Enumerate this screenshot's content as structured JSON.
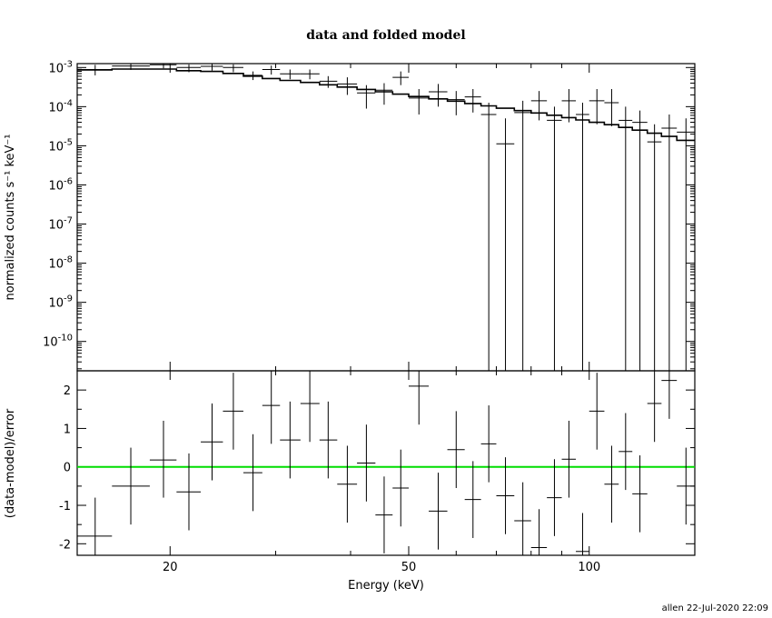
{
  "chart_data": {
    "type": "scatter",
    "title": "data and folded model",
    "footer": "allen 22-Jul-2020 22:09",
    "xlabel": "Energy (keV)",
    "xscale": "log",
    "xlim": [
      14,
      150
    ],
    "xticks": [
      {
        "value": 20,
        "label": "20"
      },
      {
        "value": 50,
        "label": "50"
      },
      {
        "value": 100,
        "label": "100"
      }
    ],
    "top_panel": {
      "ylabel": "normalized counts s⁻¹ keV⁻¹",
      "yscale": "log",
      "ylim_exp": [
        -10.75,
        -2.9
      ],
      "yticks": [
        {
          "value": -3,
          "base": "10",
          "exp": "-3"
        },
        {
          "value": -4,
          "base": "10",
          "exp": "-4"
        },
        {
          "value": -5,
          "base": "10",
          "exp": "-5"
        },
        {
          "value": -6,
          "base": "10",
          "exp": "-6"
        },
        {
          "value": -7,
          "base": "10",
          "exp": "-7"
        },
        {
          "value": -8,
          "base": "10",
          "exp": "-8"
        },
        {
          "value": -9,
          "base": "10",
          "exp": "-9"
        },
        {
          "value": -10,
          "base": "10",
          "exp": "-10"
        }
      ],
      "model_steps": [
        [
          14,
          16,
          -3.06
        ],
        [
          16,
          18.5,
          -3.04
        ],
        [
          18.5,
          20.5,
          -3.04
        ],
        [
          20.5,
          22.5,
          -3.08
        ],
        [
          22.5,
          24.5,
          -3.1
        ],
        [
          24.5,
          26.5,
          -3.15
        ],
        [
          26.5,
          28.5,
          -3.22
        ],
        [
          28.5,
          30.5,
          -3.28
        ],
        [
          30.5,
          33,
          -3.33
        ],
        [
          33,
          35.5,
          -3.38
        ],
        [
          35.5,
          38,
          -3.44
        ],
        [
          38,
          41,
          -3.5
        ],
        [
          41,
          44,
          -3.56
        ],
        [
          44,
          47,
          -3.62
        ],
        [
          47,
          50,
          -3.68
        ],
        [
          50,
          54,
          -3.74
        ],
        [
          54,
          58,
          -3.8
        ],
        [
          58,
          62,
          -3.86
        ],
        [
          62,
          66,
          -3.92
        ],
        [
          66,
          70,
          -3.98
        ],
        [
          70,
          75,
          -4.04
        ],
        [
          75,
          80,
          -4.1
        ],
        [
          80,
          85,
          -4.16
        ],
        [
          85,
          90,
          -4.22
        ],
        [
          90,
          95,
          -4.28
        ],
        [
          95,
          100,
          -4.34
        ],
        [
          100,
          106,
          -4.4
        ],
        [
          106,
          112,
          -4.46
        ],
        [
          112,
          118,
          -4.53
        ],
        [
          118,
          125,
          -4.6
        ],
        [
          125,
          132,
          -4.68
        ],
        [
          132,
          140,
          -4.76
        ],
        [
          140,
          150,
          -4.86
        ]
      ],
      "points": [
        {
          "x": 15,
          "xlo": 14,
          "xhi": 16,
          "y": -3.05,
          "ylo": -3.2,
          "yhi": -2.93
        },
        {
          "x": 17.2,
          "xlo": 16,
          "xhi": 18.5,
          "y": -2.96,
          "ylo": -3.06,
          "yhi": -2.9
        },
        {
          "x": 19.5,
          "xlo": 18.5,
          "xhi": 20.5,
          "y": -2.93,
          "ylo": -3.02,
          "yhi": -2.9
        },
        {
          "x": 21.5,
          "xlo": 20.5,
          "xhi": 22.5,
          "y": -3.0,
          "ylo": -3.12,
          "yhi": -2.92
        },
        {
          "x": 23.5,
          "xlo": 22.5,
          "xhi": 24.5,
          "y": -2.97,
          "ylo": -3.08,
          "yhi": -2.9
        },
        {
          "x": 25.5,
          "xlo": 24.5,
          "xhi": 26.5,
          "y": -3.0,
          "ylo": -3.12,
          "yhi": -2.92
        },
        {
          "x": 27.5,
          "xlo": 26.5,
          "xhi": 28.5,
          "y": -3.2,
          "ylo": -3.32,
          "yhi": -3.1
        },
        {
          "x": 29.5,
          "xlo": 28.5,
          "xhi": 30.5,
          "y": -3.05,
          "ylo": -3.18,
          "yhi": -2.95
        },
        {
          "x": 31.7,
          "xlo": 30.5,
          "xhi": 33,
          "y": -3.16,
          "ylo": -3.3,
          "yhi": -3.05
        },
        {
          "x": 34.2,
          "xlo": 33,
          "xhi": 35.5,
          "y": -3.16,
          "ylo": -3.3,
          "yhi": -3.05
        },
        {
          "x": 36.7,
          "xlo": 35.5,
          "xhi": 38,
          "y": -3.35,
          "ylo": -3.52,
          "yhi": -3.22
        },
        {
          "x": 39.5,
          "xlo": 38,
          "xhi": 41,
          "y": -3.42,
          "ylo": -3.7,
          "yhi": -3.25
        },
        {
          "x": 42.5,
          "xlo": 41,
          "xhi": 44,
          "y": -3.65,
          "ylo": -4.05,
          "yhi": -3.45
        },
        {
          "x": 45.5,
          "xlo": 44,
          "xhi": 47,
          "y": -3.58,
          "ylo": -3.95,
          "yhi": -3.4
        },
        {
          "x": 48.5,
          "xlo": 47,
          "xhi": 50,
          "y": -3.25,
          "ylo": -3.45,
          "yhi": -3.1
        },
        {
          "x": 52,
          "xlo": 50,
          "xhi": 54,
          "y": -3.78,
          "ylo": -4.2,
          "yhi": -3.55
        },
        {
          "x": 56,
          "xlo": 54,
          "xhi": 58,
          "y": -3.62,
          "ylo": -4.0,
          "yhi": -3.42
        },
        {
          "x": 60,
          "xlo": 58,
          "xhi": 62,
          "y": -3.82,
          "ylo": -4.22,
          "yhi": -3.6
        },
        {
          "x": 64,
          "xlo": 62,
          "xhi": 66,
          "y": -3.75,
          "ylo": -4.15,
          "yhi": -3.55
        },
        {
          "x": 68,
          "xlo": 66,
          "xhi": 70,
          "y": -4.2,
          "ylo": -10.75,
          "yhi": -3.9
        },
        {
          "x": 72.5,
          "xlo": 70,
          "xhi": 75,
          "y": -4.95,
          "ylo": -10.75,
          "yhi": -4.3
        },
        {
          "x": 77.5,
          "xlo": 75,
          "xhi": 80,
          "y": -4.15,
          "ylo": -10.75,
          "yhi": -3.85
        },
        {
          "x": 82.5,
          "xlo": 80,
          "xhi": 85,
          "y": -3.85,
          "ylo": -4.35,
          "yhi": -3.6
        },
        {
          "x": 87.5,
          "xlo": 85,
          "xhi": 90,
          "y": -4.35,
          "ylo": -10.75,
          "yhi": -4.0
        },
        {
          "x": 92.5,
          "xlo": 90,
          "xhi": 95,
          "y": -3.85,
          "ylo": -4.4,
          "yhi": -3.55
        },
        {
          "x": 97.5,
          "xlo": 95,
          "xhi": 100,
          "y": -4.2,
          "ylo": -10.75,
          "yhi": -3.9
        },
        {
          "x": 103,
          "xlo": 100,
          "xhi": 106,
          "y": -3.85,
          "ylo": -4.45,
          "yhi": -3.55
        },
        {
          "x": 109,
          "xlo": 106,
          "xhi": 112,
          "y": -3.9,
          "ylo": -4.5,
          "yhi": -3.55
        },
        {
          "x": 115,
          "xlo": 112,
          "xhi": 118,
          "y": -4.35,
          "ylo": -10.75,
          "yhi": -4.0
        },
        {
          "x": 121.5,
          "xlo": 118,
          "xhi": 125,
          "y": -4.4,
          "ylo": -10.75,
          "yhi": -4.1
        },
        {
          "x": 128.5,
          "xlo": 125,
          "xhi": 132,
          "y": -4.9,
          "ylo": -10.75,
          "yhi": -4.45
        },
        {
          "x": 136,
          "xlo": 132,
          "xhi": 140,
          "y": -4.55,
          "ylo": -10.75,
          "yhi": -4.2
        },
        {
          "x": 145,
          "xlo": 140,
          "xhi": 150,
          "y": -4.65,
          "ylo": -10.75,
          "yhi": -4.3
        }
      ]
    },
    "bottom_panel": {
      "ylabel": "(data-model)/error",
      "ylim": [
        -2.3,
        2.5
      ],
      "yticks": [
        {
          "value": 2,
          "label": "2"
        },
        {
          "value": 1,
          "label": "1"
        },
        {
          "value": 0,
          "label": "0"
        },
        {
          "value": -1,
          "label": "-1"
        },
        {
          "value": -2,
          "label": "-2"
        }
      ],
      "zero_line_color": "#00dd00",
      "points": [
        {
          "x": 15,
          "xlo": 14,
          "xhi": 16,
          "y": -1.8,
          "ylo": -2.3,
          "yhi": -0.8
        },
        {
          "x": 17.2,
          "xlo": 16,
          "xhi": 18.5,
          "y": -0.5,
          "ylo": -1.5,
          "yhi": 0.5
        },
        {
          "x": 19.5,
          "xlo": 18.5,
          "xhi": 20.5,
          "y": 0.18,
          "ylo": -0.8,
          "yhi": 1.2
        },
        {
          "x": 21.5,
          "xlo": 20.5,
          "xhi": 22.5,
          "y": -0.65,
          "ylo": -1.65,
          "yhi": 0.35
        },
        {
          "x": 23.5,
          "xlo": 22.5,
          "xhi": 24.5,
          "y": 0.65,
          "ylo": -0.35,
          "yhi": 1.65
        },
        {
          "x": 25.5,
          "xlo": 24.5,
          "xhi": 26.5,
          "y": 1.45,
          "ylo": 0.45,
          "yhi": 2.45
        },
        {
          "x": 27.5,
          "xlo": 26.5,
          "xhi": 28.5,
          "y": -0.15,
          "ylo": -1.15,
          "yhi": 0.85
        },
        {
          "x": 29.5,
          "xlo": 28.5,
          "xhi": 30.5,
          "y": 1.6,
          "ylo": 0.6,
          "yhi": 2.5
        },
        {
          "x": 31.7,
          "xlo": 30.5,
          "xhi": 33,
          "y": 0.7,
          "ylo": -0.3,
          "yhi": 1.7
        },
        {
          "x": 34.2,
          "xlo": 33,
          "xhi": 35.5,
          "y": 1.65,
          "ylo": 0.65,
          "yhi": 2.5
        },
        {
          "x": 36.7,
          "xlo": 35.5,
          "xhi": 38,
          "y": 0.7,
          "ylo": -0.3,
          "yhi": 1.7
        },
        {
          "x": 39.5,
          "xlo": 38,
          "xhi": 41,
          "y": -0.45,
          "ylo": -1.45,
          "yhi": 0.55
        },
        {
          "x": 42.5,
          "xlo": 41,
          "xhi": 44,
          "y": 0.1,
          "ylo": -0.9,
          "yhi": 1.1
        },
        {
          "x": 45.5,
          "xlo": 44,
          "xhi": 47,
          "y": -1.25,
          "ylo": -2.25,
          "yhi": -0.25
        },
        {
          "x": 48.5,
          "xlo": 47,
          "xhi": 50,
          "y": -0.55,
          "ylo": -1.55,
          "yhi": 0.45
        },
        {
          "x": 52,
          "xlo": 50,
          "xhi": 54,
          "y": 2.1,
          "ylo": 1.1,
          "yhi": 2.5
        },
        {
          "x": 56,
          "xlo": 54,
          "xhi": 58,
          "y": -1.15,
          "ylo": -2.15,
          "yhi": -0.15
        },
        {
          "x": 60,
          "xlo": 58,
          "xhi": 62,
          "y": 0.45,
          "ylo": -0.55,
          "yhi": 1.45
        },
        {
          "x": 64,
          "xlo": 62,
          "xhi": 66,
          "y": -0.85,
          "ylo": -1.85,
          "yhi": 0.15
        },
        {
          "x": 68,
          "xlo": 66,
          "xhi": 70,
          "y": 0.6,
          "ylo": -0.4,
          "yhi": 1.6
        },
        {
          "x": 72.5,
          "xlo": 70,
          "xhi": 75,
          "y": -0.75,
          "ylo": -1.75,
          "yhi": 0.25
        },
        {
          "x": 77.5,
          "xlo": 75,
          "xhi": 80,
          "y": -1.4,
          "ylo": -2.3,
          "yhi": -0.4
        },
        {
          "x": 82.5,
          "xlo": 80,
          "xhi": 85,
          "y": -2.1,
          "ylo": -2.3,
          "yhi": -1.1
        },
        {
          "x": 87.5,
          "xlo": 85,
          "xhi": 90,
          "y": -0.8,
          "ylo": -1.8,
          "yhi": 0.2
        },
        {
          "x": 92.5,
          "xlo": 90,
          "xhi": 95,
          "y": 0.2,
          "ylo": -0.8,
          "yhi": 1.2
        },
        {
          "x": 97.5,
          "xlo": 95,
          "xhi": 100,
          "y": -2.2,
          "ylo": -2.3,
          "yhi": -1.2
        },
        {
          "x": 103,
          "xlo": 100,
          "xhi": 106,
          "y": 1.45,
          "ylo": 0.45,
          "yhi": 2.45
        },
        {
          "x": 109,
          "xlo": 106,
          "xhi": 112,
          "y": -0.45,
          "ylo": -1.45,
          "yhi": 0.55
        },
        {
          "x": 115,
          "xlo": 112,
          "xhi": 118,
          "y": 0.4,
          "ylo": -0.6,
          "yhi": 1.4
        },
        {
          "x": 121.5,
          "xlo": 118,
          "xhi": 125,
          "y": -0.7,
          "ylo": -1.7,
          "yhi": 0.3
        },
        {
          "x": 128.5,
          "xlo": 125,
          "xhi": 132,
          "y": 1.65,
          "ylo": 0.65,
          "yhi": 2.5
        },
        {
          "x": 136,
          "xlo": 132,
          "xhi": 140,
          "y": 2.25,
          "ylo": 1.25,
          "yhi": 2.5
        },
        {
          "x": 145,
          "xlo": 140,
          "xhi": 150,
          "y": -0.5,
          "ylo": -1.5,
          "yhi": 0.5
        }
      ]
    }
  }
}
